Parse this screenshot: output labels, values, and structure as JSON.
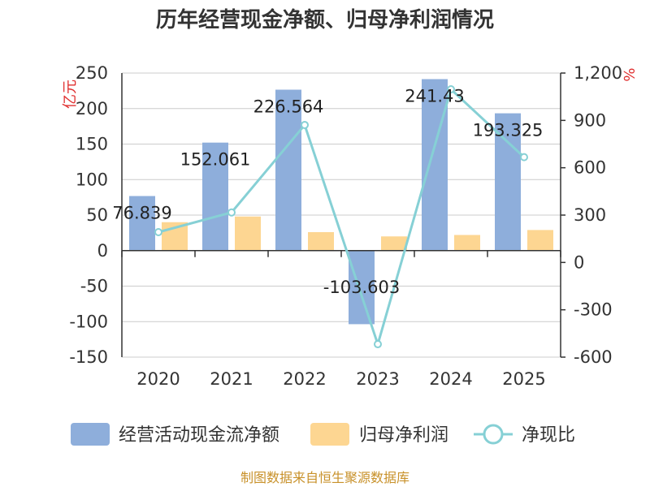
{
  "chart_data": {
    "type": "bar",
    "title": "历年经营现金净额、归母净利润情况",
    "categories": [
      "2020",
      "2021",
      "2022",
      "2023",
      "2024",
      "2025"
    ],
    "series": [
      {
        "name": "经营活动现金流净额",
        "type": "bar",
        "axis": "left",
        "color": "#8eaedb",
        "values": [
          76.839,
          152.061,
          226.564,
          -103.603,
          241.43,
          193.325
        ]
      },
      {
        "name": "归母净利润",
        "type": "bar",
        "axis": "left",
        "color": "#fdd692",
        "values": [
          40,
          48,
          26,
          20,
          22,
          29
        ]
      },
      {
        "name": "净现比",
        "type": "line",
        "axis": "right",
        "color": "#86d0d5",
        "values": [
          192,
          317,
          871,
          -518,
          1097,
          667
        ]
      }
    ],
    "data_labels": [
      "76.839",
      "152.061",
      "226.564",
      "-103.603",
      "241.43",
      "193.325"
    ],
    "y_left": {
      "unit": "亿元",
      "ylim": [
        -150,
        250
      ],
      "ticks": [
        "250",
        "200",
        "150",
        "100",
        "50",
        "0",
        "-50",
        "-100",
        "-150"
      ]
    },
    "y_right": {
      "unit": "%",
      "ylim": [
        -600,
        1200
      ],
      "ticks": [
        "1,200",
        "900",
        "600",
        "300",
        "0",
        "-300",
        "-600"
      ]
    },
    "legend_position": "bottom",
    "source": "制图数据来自恒生聚源数据库",
    "colors": {
      "unit": "#e03030",
      "source": "#c8912a",
      "grid": "#cccccc",
      "axis": "#333333"
    }
  }
}
